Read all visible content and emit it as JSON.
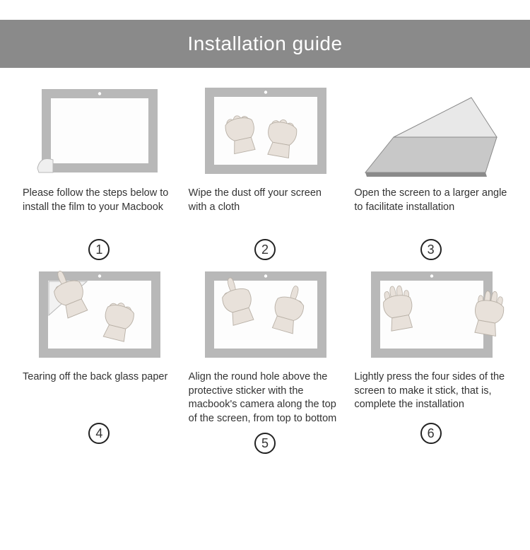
{
  "header": {
    "title": "Installation guide",
    "bg_color": "#8a8a8a",
    "text_color": "#ffffff"
  },
  "colors": {
    "frame": "#b8b8b8",
    "screen_bg": "#fdfdfd",
    "text": "#333333",
    "circle_border": "#222222",
    "skin": "#e8e1da",
    "skin_edge": "#b8b0a6",
    "laptop_body": "#c8c8c8",
    "laptop_shadow": "#8a8a8a",
    "caption_fontsize": 14.5
  },
  "steps": [
    {
      "num": "1",
      "caption": "Please follow the steps below to install the film to your Macbook",
      "kind": "film-sheet"
    },
    {
      "num": "2",
      "caption": "Wipe the dust off your screen with a cloth",
      "kind": "wipe"
    },
    {
      "num": "3",
      "caption": "Open the screen to a larger angle to facilitate installation",
      "kind": "laptop-open"
    },
    {
      "num": "4",
      "caption": "Tearing off the back glass paper",
      "kind": "peel"
    },
    {
      "num": "5",
      "caption": "Align the round hole above the protective sticker with the macbook's camera along the top of the screen, from top to bottom",
      "kind": "align"
    },
    {
      "num": "6",
      "caption": "Lightly press the four sides of the screen to make it stick, that is, complete the installation",
      "kind": "press"
    }
  ]
}
